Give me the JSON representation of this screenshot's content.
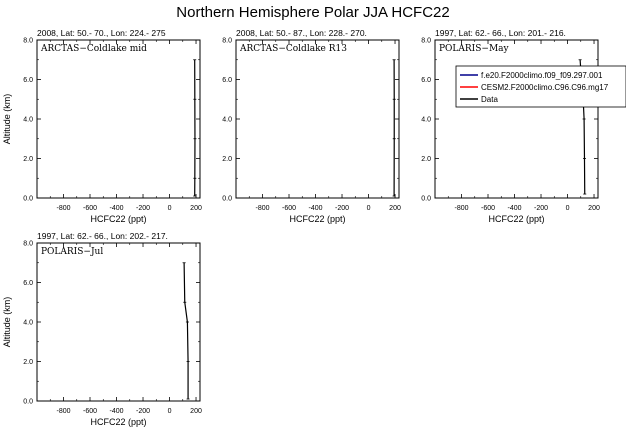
{
  "title": "Northern Hemisphere Polar JJA HCFC22",
  "legend": {
    "entries": [
      {
        "label": "f.e20.F2000climo.f09_f09.297.001",
        "color": "#00008b"
      },
      {
        "label": "CESM2.F2000climo.C96.C96.mg17",
        "color": "#ff0000"
      },
      {
        "label": "Data",
        "color": "#000000"
      }
    ]
  },
  "chart_data": [
    {
      "type": "line",
      "panel_label": "ARCTAS−Coldlake mid",
      "info": "2008, Lat:  50.- 70., Lon: 224.- 275",
      "xlabel": "HCFC22 (ppt)",
      "ylabel": "Altitude (km)",
      "xlim": [
        -1000,
        230
      ],
      "ylim": [
        0,
        8
      ],
      "xticks": [
        -800,
        -600,
        -400,
        -200,
        0,
        200
      ],
      "yticks": [
        0.0,
        2.0,
        4.0,
        6.0,
        8.0
      ],
      "series": [
        {
          "name": "Data",
          "x": [
            190,
            191,
            192,
            191,
            190
          ],
          "y": [
            7.0,
            5.0,
            3.0,
            1.0,
            0.1
          ]
        }
      ]
    },
    {
      "type": "line",
      "panel_label": "ARCTAS−Coldlake R13",
      "info": "2008, Lat:  50.- 87., Lon: 228.- 270.",
      "xlabel": "HCFC22 (ppt)",
      "ylabel": "",
      "xlim": [
        -1000,
        230
      ],
      "ylim": [
        0,
        8
      ],
      "xticks": [
        -800,
        -600,
        -400,
        -200,
        0,
        200
      ],
      "yticks": [
        0.0,
        2.0,
        4.0,
        6.0,
        8.0
      ],
      "series": [
        {
          "name": "Data",
          "x": [
            193,
            194,
            194,
            193
          ],
          "y": [
            7.0,
            5.0,
            3.0,
            0.1
          ]
        }
      ]
    },
    {
      "type": "line",
      "panel_label": "POLARIS−May",
      "info": "1997, Lat:  62.- 66., Lon: 201.- 216.",
      "xlabel": "HCFC22 (ppt)",
      "ylabel": "",
      "xlim": [
        -1000,
        230
      ],
      "ylim": [
        0,
        8
      ],
      "xticks": [
        -800,
        -600,
        -400,
        -200,
        0,
        200
      ],
      "yticks": [
        0.0,
        2.0,
        4.0,
        6.0,
        8.0
      ],
      "series": [
        {
          "name": "Data",
          "x": [
            95,
            105,
            118,
            125,
            128,
            130
          ],
          "y": [
            7.0,
            6.0,
            5.0,
            4.0,
            2.0,
            0.2
          ]
        }
      ]
    },
    {
      "type": "line",
      "panel_label": "POLARIS−Jul",
      "info": "1997, Lat:  62.- 66., Lon: 202.- 217.",
      "xlabel": "HCFC22 (ppt)",
      "ylabel": "Altitude (km)",
      "xlim": [
        -1000,
        230
      ],
      "ylim": [
        0,
        8
      ],
      "xticks": [
        -800,
        -600,
        -400,
        -200,
        0,
        200
      ],
      "yticks": [
        0.0,
        2.0,
        4.0,
        6.0,
        8.0
      ],
      "series": [
        {
          "name": "Data",
          "x": [
            110,
            115,
            135,
            140,
            140
          ],
          "y": [
            7.0,
            5.0,
            4.0,
            2.0,
            0.1
          ]
        }
      ]
    }
  ]
}
